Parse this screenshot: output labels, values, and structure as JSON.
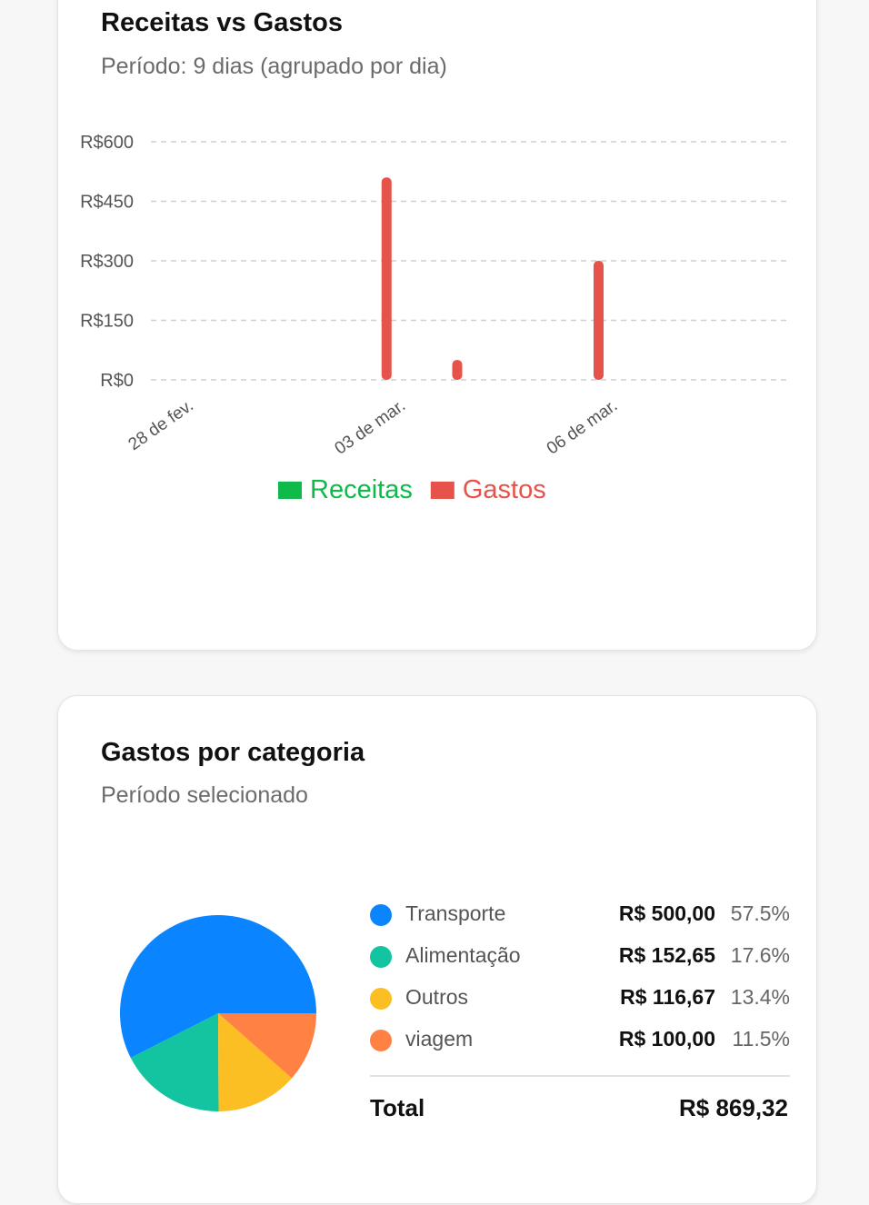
{
  "colors": {
    "receitas": "#0dba4a",
    "gastos": "#e5534b",
    "grid": "#cfcfcf"
  },
  "line_card": {
    "title": "Receitas vs Gastos",
    "subtitle": "Período: 9 dias (agrupado por dia)"
  },
  "pie_card": {
    "title": "Gastos por categoria",
    "subtitle": "Período selecionado",
    "total_label": "Total",
    "total_value": "R$ 869,32"
  },
  "chart_data": [
    {
      "type": "bar",
      "title": "Receitas vs Gastos",
      "subtitle": "Período: 9 dias (agrupado por dia)",
      "y_ticks": [
        "R$0",
        "R$150",
        "R$300",
        "R$450",
        "R$600"
      ],
      "ylim": [
        0,
        600
      ],
      "x_tick_labels": [
        {
          "index": 0,
          "label": "28 de fev."
        },
        {
          "index": 3,
          "label": "03 de mar."
        },
        {
          "index": 6,
          "label": "06 de mar."
        }
      ],
      "x": [
        0,
        1,
        2,
        3,
        4,
        5,
        6,
        7,
        8
      ],
      "series": [
        {
          "name": "Receitas",
          "color": "#0dba4a",
          "values": [
            0,
            0,
            0,
            0,
            0,
            0,
            0,
            0,
            0
          ]
        },
        {
          "name": "Gastos",
          "color": "#e5534b",
          "values": [
            0,
            0,
            0,
            510,
            50,
            0,
            300,
            0,
            0
          ]
        }
      ],
      "grid": true,
      "legend": "bottom-center"
    },
    {
      "type": "pie",
      "title": "Gastos por categoria",
      "subtitle": "Período selecionado",
      "slices": [
        {
          "label": "Transporte",
          "value": 500.0,
          "value_text": "R$ 500,00",
          "percent": "57.5%",
          "color": "#0a84ff"
        },
        {
          "label": "Alimentação",
          "value": 152.65,
          "value_text": "R$ 152,65",
          "percent": "17.6%",
          "color": "#13c4a1"
        },
        {
          "label": "Outros",
          "value": 116.67,
          "value_text": "R$ 116,67",
          "percent": "13.4%",
          "color": "#fbbf24"
        },
        {
          "label": "viagem",
          "value": 100.0,
          "value_text": "R$ 100,00",
          "percent": "11.5%",
          "color": "#ff8244"
        }
      ]
    }
  ]
}
